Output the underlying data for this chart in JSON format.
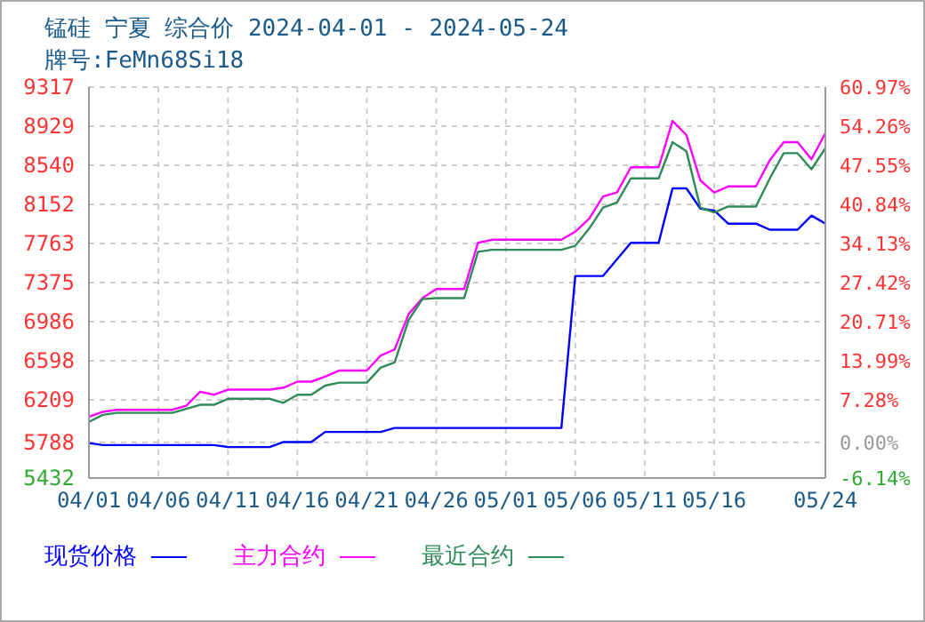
{
  "chart_data": {
    "type": "line",
    "title": "锰硅 宁夏 综合价 2024-04-01 - 2024-05-24",
    "subtitle": "牌号:FeMn68Si18",
    "xlim": [
      "2024-04-01",
      "2024-05-24"
    ],
    "xticks": [
      {
        "value": "2024-04-01",
        "label": "04/01"
      },
      {
        "value": "2024-04-06",
        "label": "04/06"
      },
      {
        "value": "2024-04-11",
        "label": "04/11"
      },
      {
        "value": "2024-04-16",
        "label": "04/16"
      },
      {
        "value": "2024-04-21",
        "label": "04/21"
      },
      {
        "value": "2024-04-26",
        "label": "04/26"
      },
      {
        "value": "2024-05-01",
        "label": "05/01"
      },
      {
        "value": "2024-05-06",
        "label": "05/06"
      },
      {
        "value": "2024-05-11",
        "label": "05/11"
      },
      {
        "value": "2024-05-16",
        "label": "05/16"
      },
      {
        "value": "2024-05-24",
        "label": "05/24"
      }
    ],
    "ylim": [
      5432,
      9317
    ],
    "yticks": [
      5432,
      5788,
      6209,
      6598,
      6986,
      7375,
      7763,
      8152,
      8540,
      8929,
      9317
    ],
    "y2lim": [
      -6.14,
      60.97
    ],
    "y2ticks": [
      {
        "value": -6.14,
        "label": "-6.14%"
      },
      {
        "value": 0,
        "label": "0.00%"
      },
      {
        "value": 7.28,
        "label": "7.28%"
      },
      {
        "value": 13.99,
        "label": "13.99%"
      },
      {
        "value": 20.71,
        "label": "20.71%"
      },
      {
        "value": 27.42,
        "label": "27.42%"
      },
      {
        "value": 34.13,
        "label": "34.13%"
      },
      {
        "value": 40.84,
        "label": "40.84%"
      },
      {
        "value": 47.55,
        "label": "47.55%"
      },
      {
        "value": 54.26,
        "label": "54.26%"
      },
      {
        "value": 60.97,
        "label": "60.97%"
      }
    ],
    "grid": true,
    "legend": "bottom",
    "marker": "none",
    "line_style": "solid",
    "series": [
      {
        "name": "现货价格",
        "color": "#0000ff",
        "x": [
          "2024-04-01",
          "2024-04-02",
          "2024-04-10",
          "2024-04-11",
          "2024-04-14",
          "2024-04-15",
          "2024-04-17",
          "2024-04-18",
          "2024-04-22",
          "2024-04-23",
          "2024-05-05",
          "2024-05-06",
          "2024-05-08",
          "2024-05-10",
          "2024-05-12",
          "2024-05-13",
          "2024-05-14",
          "2024-05-15",
          "2024-05-16",
          "2024-05-17",
          "2024-05-19",
          "2024-05-20",
          "2024-05-22",
          "2024-05-23",
          "2024-05-24"
        ],
        "values": [
          5780,
          5760,
          5760,
          5740,
          5740,
          5790,
          5790,
          5890,
          5890,
          5930,
          5930,
          7440,
          7440,
          7770,
          7770,
          8310,
          8310,
          8110,
          8090,
          7960,
          7960,
          7900,
          7900,
          8040,
          7960
        ]
      },
      {
        "name": "主力合约",
        "color": "#ff00ff",
        "x": [
          "2024-04-01",
          "2024-04-02",
          "2024-04-03",
          "2024-04-07",
          "2024-04-08",
          "2024-04-09",
          "2024-04-10",
          "2024-04-11",
          "2024-04-14",
          "2024-04-15",
          "2024-04-16",
          "2024-04-17",
          "2024-04-18",
          "2024-04-19",
          "2024-04-21",
          "2024-04-22",
          "2024-04-23",
          "2024-04-24",
          "2024-04-25",
          "2024-04-26",
          "2024-04-28",
          "2024-04-29",
          "2024-04-30",
          "2024-05-05",
          "2024-05-06",
          "2024-05-07",
          "2024-05-08",
          "2024-05-09",
          "2024-05-10",
          "2024-05-12",
          "2024-05-13",
          "2024-05-14",
          "2024-05-15",
          "2024-05-16",
          "2024-05-17",
          "2024-05-19",
          "2024-05-20",
          "2024-05-21",
          "2024-05-22",
          "2024-05-23",
          "2024-05-24"
        ],
        "values": [
          6040,
          6090,
          6110,
          6110,
          6150,
          6290,
          6260,
          6310,
          6310,
          6330,
          6390,
          6390,
          6440,
          6500,
          6500,
          6650,
          6710,
          7060,
          7220,
          7310,
          7310,
          7770,
          7800,
          7800,
          7880,
          8010,
          8230,
          8270,
          8520,
          8520,
          8980,
          8840,
          8390,
          8270,
          8330,
          8330,
          8590,
          8770,
          8770,
          8600,
          8860
        ]
      },
      {
        "name": "最近合约",
        "color": "#2e8b57",
        "x": [
          "2024-04-01",
          "2024-04-02",
          "2024-04-03",
          "2024-04-07",
          "2024-04-09",
          "2024-04-10",
          "2024-04-11",
          "2024-04-14",
          "2024-04-15",
          "2024-04-16",
          "2024-04-17",
          "2024-04-18",
          "2024-04-19",
          "2024-04-21",
          "2024-04-22",
          "2024-04-23",
          "2024-04-24",
          "2024-04-25",
          "2024-04-26",
          "2024-04-28",
          "2024-04-29",
          "2024-04-30",
          "2024-05-05",
          "2024-05-06",
          "2024-05-07",
          "2024-05-08",
          "2024-05-09",
          "2024-05-10",
          "2024-05-12",
          "2024-05-13",
          "2024-05-14",
          "2024-05-15",
          "2024-05-16",
          "2024-05-17",
          "2024-05-19",
          "2024-05-20",
          "2024-05-21",
          "2024-05-22",
          "2024-05-23",
          "2024-05-24"
        ],
        "values": [
          5990,
          6060,
          6080,
          6080,
          6160,
          6160,
          6220,
          6220,
          6180,
          6260,
          6260,
          6350,
          6380,
          6380,
          6530,
          6580,
          7000,
          7210,
          7220,
          7220,
          7680,
          7700,
          7700,
          7740,
          7910,
          8120,
          8170,
          8410,
          8410,
          8770,
          8680,
          8120,
          8070,
          8130,
          8130,
          8410,
          8660,
          8660,
          8500,
          8710
        ]
      }
    ]
  }
}
